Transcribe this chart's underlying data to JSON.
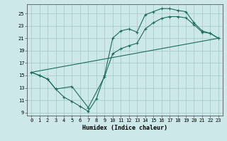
{
  "xlabel": "Humidex (Indice chaleur)",
  "xlim": [
    -0.5,
    23.5
  ],
  "ylim": [
    8.5,
    26.5
  ],
  "xticks": [
    0,
    1,
    2,
    3,
    4,
    5,
    6,
    7,
    8,
    9,
    10,
    11,
    12,
    13,
    14,
    15,
    16,
    17,
    18,
    19,
    20,
    21,
    22,
    23
  ],
  "yticks": [
    9,
    11,
    13,
    15,
    17,
    19,
    21,
    23,
    25
  ],
  "bg_color": "#cce8e8",
  "line_color": "#1a6b5a",
  "grid_color": "#aacccc",
  "line1_x": [
    0,
    1,
    2,
    3,
    4,
    5,
    6,
    7,
    8,
    9,
    10,
    11,
    12,
    13,
    14,
    15,
    16,
    17,
    18,
    19,
    20,
    21,
    22,
    23
  ],
  "line1_y": [
    15.5,
    15.0,
    14.4,
    12.8,
    11.5,
    10.8,
    10.0,
    9.2,
    11.2,
    15.0,
    21.0,
    22.2,
    22.5,
    22.0,
    24.8,
    25.3,
    25.8,
    25.8,
    25.5,
    25.3,
    23.5,
    22.2,
    21.8,
    21.0
  ],
  "line2_x": [
    0,
    1,
    2,
    3,
    5,
    7,
    9,
    10,
    11,
    12,
    13,
    14,
    15,
    16,
    17,
    18,
    19,
    20,
    21,
    22,
    23
  ],
  "line2_y": [
    15.5,
    15.0,
    14.4,
    12.8,
    13.2,
    9.8,
    14.8,
    18.5,
    19.3,
    19.8,
    20.2,
    22.5,
    23.5,
    24.2,
    24.5,
    24.5,
    24.3,
    23.2,
    22.0,
    21.8,
    21.0
  ],
  "line3_x": [
    0,
    23
  ],
  "line3_y": [
    15.5,
    21.0
  ]
}
